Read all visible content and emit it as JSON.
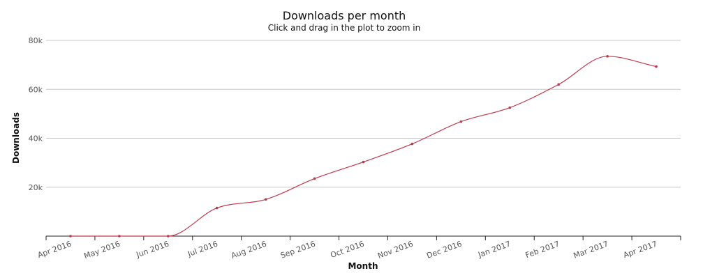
{
  "chart_data": {
    "type": "line",
    "title": "Downloads per month",
    "subtitle": "Click and drag in the plot to zoom in",
    "xlabel": "Month",
    "ylabel": "Downloads",
    "categories": [
      "Apr 2016",
      "May 2016",
      "Jun 2016",
      "Jul 2016",
      "Aug 2016",
      "Sep 2016",
      "Oct 2016",
      "Nov 2016",
      "Dec 2016",
      "Jan 2017",
      "Feb 2017",
      "Mar 2017",
      "Apr 2017"
    ],
    "series": [
      {
        "values": [
          0,
          0,
          0,
          11500,
          15000,
          23500,
          30300,
          37700,
          46800,
          52500,
          62000,
          73500,
          69300
        ],
        "color": "#c0394b"
      }
    ],
    "ylim": [
      0,
      80000
    ],
    "yticks": [
      20000,
      40000,
      60000,
      80000
    ],
    "ytick_labels": [
      "20k",
      "40k",
      "60k",
      "80k"
    ],
    "grid": true,
    "legend": "none"
  }
}
